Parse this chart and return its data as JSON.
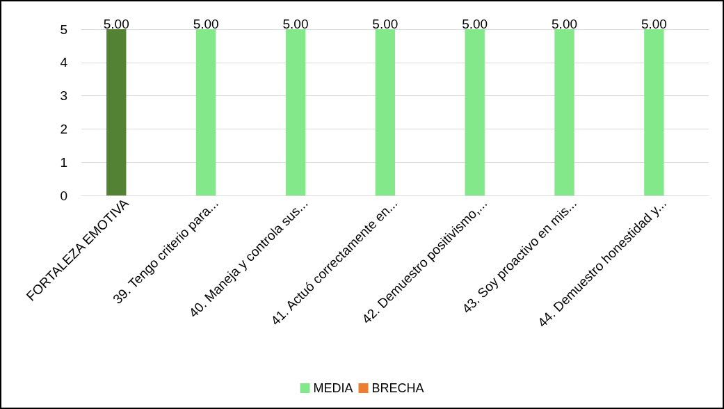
{
  "chart_data": {
    "type": "bar",
    "categories": [
      "FORTALEZA EMOTIVA",
      "39. Tengo criterio para...",
      "40. Maneja y controla sus...",
      "41. Actuó correctamente en...",
      "42. Demuestro positivismo,...",
      "43. Soy proactivo en mis...",
      "44. Demuestro honestidad y..."
    ],
    "series": [
      {
        "name": "MEDIA",
        "color": "#82e88a",
        "colors": [
          "#548235",
          "#82e88a",
          "#82e88a",
          "#82e88a",
          "#82e88a",
          "#82e88a",
          "#82e88a"
        ],
        "values": [
          5,
          5,
          5,
          5,
          5,
          5,
          5
        ],
        "value_labels": [
          "5.00",
          "5.00",
          "5.00",
          "5.00",
          "5.00",
          "5.00",
          "5.00"
        ]
      },
      {
        "name": "BRECHA",
        "color": "#ed7d31",
        "values": [
          null,
          null,
          null,
          null,
          null,
          null,
          null
        ]
      }
    ],
    "ylim": [
      0,
      5
    ],
    "yticks": [
      0,
      1,
      2,
      3,
      4,
      5
    ],
    "grid": "y",
    "legend": "bottom"
  }
}
